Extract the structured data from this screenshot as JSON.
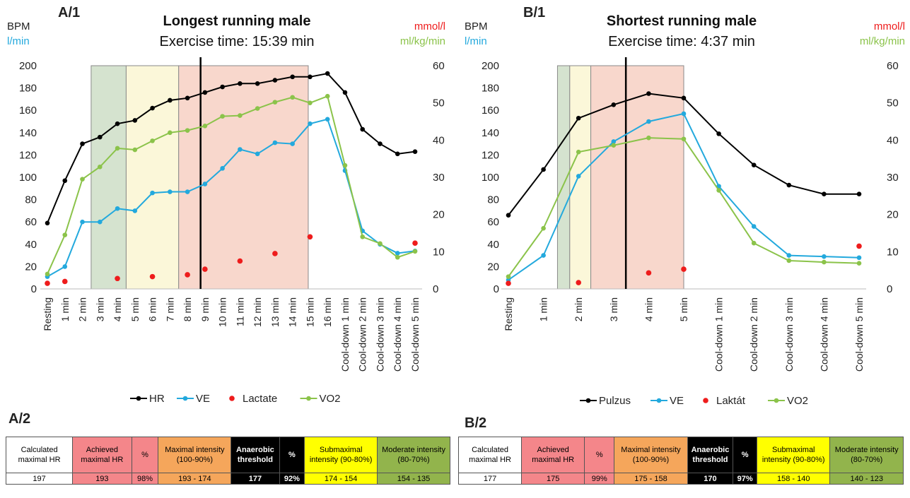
{
  "panels": [
    {
      "tag": "A/1",
      "title": "Longest running male",
      "subtitle": "Exercise time: 15:39 min",
      "left_unit_1": "BPM",
      "left_unit_2": "l/min",
      "right_unit_1": "mmol/l",
      "right_unit_2": "ml/kg/min"
    },
    {
      "tag": "B/1",
      "title": "Shortest running male",
      "subtitle": "Exercise time: 4:37 min",
      "left_unit_1": "BPM",
      "left_unit_2": "l/min",
      "right_unit_1": "mmol/l",
      "right_unit_2": "ml/kg/min"
    }
  ],
  "chart_data": [
    {
      "type": "line",
      "left_ylim": [
        0,
        200
      ],
      "left_ticks": [
        0,
        20,
        40,
        60,
        80,
        100,
        120,
        140,
        160,
        180,
        200
      ],
      "right_ylim": [
        0,
        60
      ],
      "right_ticks": [
        0,
        10,
        20,
        30,
        40,
        50,
        60
      ],
      "categories": [
        "Resting",
        "1 min",
        "2 min",
        "3 min",
        "4 min",
        "5 min",
        "6 min",
        "7 min",
        "8 min",
        "9 min",
        "10 min",
        "11 min",
        "12 min",
        "13 min",
        "14 min",
        "15 min",
        "16 min",
        "Cool-down 1 min",
        "Cool-down 2 min",
        "Cool-down 3 min",
        "Cool-down 4 min",
        "Cool-down 5 min"
      ],
      "zones": [
        {
          "from": 2.5,
          "to": 4.5,
          "color": "#d5e3cf"
        },
        {
          "from": 4.5,
          "to": 7.5,
          "color": "#fbf7d9"
        },
        {
          "from": 7.5,
          "to": 14.9,
          "color": "#f8d7cc"
        }
      ],
      "threshold_line": 8.75,
      "series": [
        {
          "name": "HR",
          "axis": "left",
          "color": "#000000",
          "kind": "line",
          "values": [
            59,
            97,
            130,
            136,
            148,
            151,
            162,
            169,
            171,
            176,
            181,
            184,
            184,
            187,
            190,
            190,
            193,
            176,
            143,
            130,
            121,
            123
          ]
        },
        {
          "name": "VE",
          "axis": "left",
          "color": "#23a9dd",
          "kind": "line",
          "values": [
            11,
            20,
            60,
            60,
            72,
            70,
            86,
            87,
            87,
            94,
            108,
            125,
            121,
            131,
            130,
            148,
            152,
            106,
            52,
            40,
            32,
            34
          ]
        },
        {
          "name": "Lactate",
          "axis": "right",
          "color": "#ee1c1c",
          "kind": "dots",
          "values": [
            1.5,
            2,
            null,
            null,
            2.8,
            null,
            3.3,
            null,
            3.8,
            5.3,
            null,
            7.5,
            null,
            9.5,
            null,
            14,
            null,
            null,
            null,
            null,
            null,
            12.3
          ]
        },
        {
          "name": "VO2",
          "axis": "right",
          "color": "#8bc34a",
          "kind": "line",
          "values": [
            4,
            14.5,
            29.5,
            32.8,
            37.8,
            37.4,
            39.8,
            42,
            42.6,
            43.8,
            46.4,
            46.6,
            48.5,
            50.2,
            51.5,
            50,
            51.8,
            33.2,
            14,
            12.2,
            8.5,
            10.1
          ]
        }
      ]
    },
    {
      "type": "line",
      "left_ylim": [
        0,
        200
      ],
      "left_ticks": [
        0,
        20,
        40,
        60,
        80,
        100,
        120,
        140,
        160,
        180,
        200
      ],
      "right_ylim": [
        0,
        60
      ],
      "right_ticks": [
        0,
        10,
        20,
        30,
        40,
        50,
        60
      ],
      "categories": [
        "Resting",
        "1 min",
        "2 min",
        "3 min",
        "4 min",
        "5 min",
        "Cool-down 1 min",
        "Cool-down 2 min",
        "Cool-down 3 min",
        "Cool-down 4 min",
        "Cool-down 5 min"
      ],
      "zones": [
        {
          "from": 1.4,
          "to": 1.75,
          "color": "#d5e3cf"
        },
        {
          "from": 1.75,
          "to": 2.35,
          "color": "#fbf7d9"
        },
        {
          "from": 2.35,
          "to": 5.0,
          "color": "#f8d7cc"
        }
      ],
      "threshold_line": 3.35,
      "series": [
        {
          "name": "Pulzus",
          "axis": "left",
          "color": "#000000",
          "kind": "line",
          "values": [
            66,
            107,
            153,
            165,
            175,
            171,
            139,
            111,
            93,
            85,
            85
          ]
        },
        {
          "name": "VE",
          "axis": "left",
          "color": "#23a9dd",
          "kind": "line",
          "values": [
            8,
            30,
            101,
            132,
            150,
            157,
            92,
            56,
            30,
            29,
            28
          ]
        },
        {
          "name": "Laktát",
          "axis": "right",
          "color": "#ee1c1c",
          "kind": "dots",
          "values": [
            1.5,
            null,
            1.7,
            null,
            4.3,
            5.3,
            null,
            null,
            null,
            null,
            11.5
          ]
        },
        {
          "name": "VO2",
          "axis": "right",
          "color": "#8bc34a",
          "kind": "line",
          "values": [
            3.3,
            16.3,
            36.8,
            38.6,
            40.6,
            40.3,
            26.5,
            12.3,
            7.6,
            7.2,
            6.9
          ]
        }
      ]
    }
  ],
  "tables": [
    {
      "tag": "A/2",
      "headers": [
        "Calculated maximal HR",
        "Achieved maximal HR",
        "%",
        "Maximal intensity (100-90%)",
        "Anaerobic threshold",
        "%",
        "Submaximal intensity (90-80%)",
        "Moderate intensity (80-70%)"
      ],
      "values": [
        "197",
        "193",
        "98%",
        "193 - 174",
        "177",
        "92%",
        "174 - 154",
        "154 - 135"
      ],
      "colors": {
        "achieved": "#f4868a",
        "maximal": "#f5a65b",
        "threshold": "#000000",
        "submaximal": "#ffff00",
        "moderate": "#92b44c"
      }
    },
    {
      "tag": "B/2",
      "headers": [
        "Calculated maximal HR",
        "Achieved maximal HR",
        "%",
        "Maximal intensity (100-90%)",
        "Anaerobic threshold",
        "%",
        "Submaximal intensity (90-80%)",
        "Moderate intensity (80-70%)"
      ],
      "values": [
        "177",
        "175",
        "99%",
        "175 - 158",
        "170",
        "97%",
        "158 - 140",
        "140 - 123"
      ],
      "colors": {
        "achieved": "#f4868a",
        "maximal": "#f5a65b",
        "threshold": "#000000",
        "submaximal": "#ffff00",
        "moderate": "#92b44c"
      }
    }
  ]
}
